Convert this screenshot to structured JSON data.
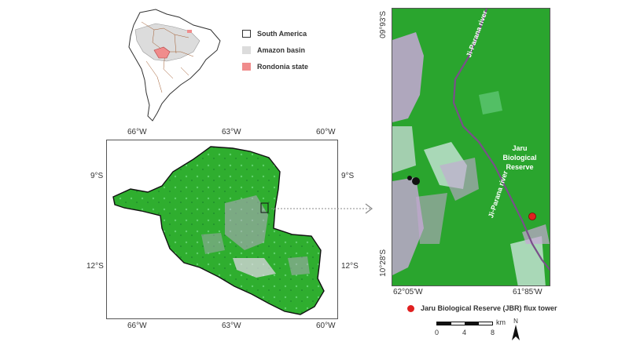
{
  "legend": {
    "items": [
      {
        "label": "South America",
        "swatch": "#ffffff"
      },
      {
        "label": "Amazon basin",
        "swatch": "#dcdcdc"
      },
      {
        "label": "Rondonia state",
        "swatch": "#f08c8c"
      }
    ]
  },
  "state_map": {
    "top_ticks": [
      "66°W",
      "63°W",
      "60°W"
    ],
    "bottom_ticks": [
      "66°W",
      "63°W",
      "60°W"
    ],
    "left_ticks": [
      "9°S",
      "12°S"
    ],
    "right_ticks": [
      "9°S",
      "12°S"
    ]
  },
  "detail_map": {
    "top_right_coord": "09°93'S",
    "bottom_left_lat": "10°28'S",
    "bottom_left_lon": "62°05'W",
    "bottom_right_lon": "61°85'W",
    "river_label_top": "Ji-Parana river",
    "river_label_mid": "Ji-Parana river",
    "reserve_label": "Jaru Biological Reserve",
    "tower_legend": "Jaru Biological Reserve (JBR) flux tower",
    "scale_labels": [
      "0",
      "4",
      "8"
    ],
    "scale_unit": "km",
    "north_label": "N"
  },
  "colors": {
    "forest": "#2fae2f",
    "tower": "#e02020",
    "rondonia": "#f08c8c",
    "amazon": "#dcdcdc"
  }
}
